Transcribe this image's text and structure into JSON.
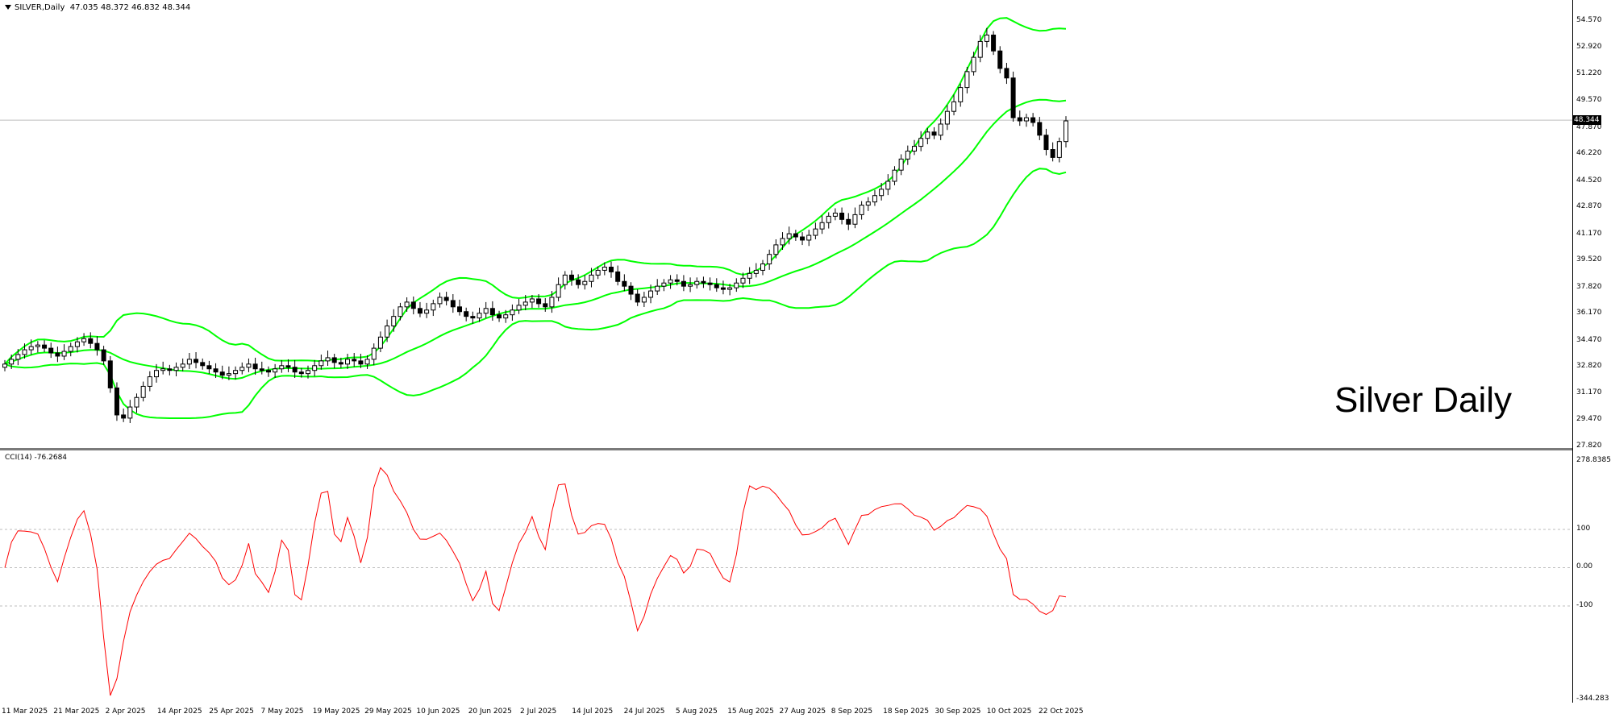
{
  "symbol_label": "SILVER,Daily",
  "ohlc_label": "47.035 48.372 46.832 48.344",
  "watermark": "Silver Daily",
  "cci_label": "CCI(14) -76.2684",
  "last_price": "48.344",
  "colors": {
    "bands": "#00ff00",
    "cci": "#ff0000",
    "candle": "#000000",
    "grid": "#c8c8c8"
  },
  "price_axis": [
    "54.570",
    "52.920",
    "51.220",
    "49.570",
    "47.870",
    "46.220",
    "44.520",
    "42.870",
    "41.170",
    "39.520",
    "37.820",
    "36.170",
    "34.470",
    "32.820",
    "31.170",
    "29.470",
    "27.820"
  ],
  "cci_axis": [
    "278.8385",
    "100",
    "0.00",
    "-100",
    "-344.283"
  ],
  "date_axis": [
    "11 Mar 2025",
    "21 Mar 2025",
    "2 Apr 2025",
    "14 Apr 2025",
    "25 Apr 2025",
    "7 May 2025",
    "19 May 2025",
    "29 May 2025",
    "10 Jun 2025",
    "20 Jun 2025",
    "2 Jul 2025",
    "14 Jul 2025",
    "24 Jul 2025",
    "5 Aug 2025",
    "15 Aug 2025",
    "27 Aug 2025",
    "8 Sep 2025",
    "18 Sep 2025",
    "30 Sep 2025",
    "10 Oct 2025",
    "22 Oct 2025"
  ],
  "chart_data": {
    "type": "candlestick",
    "period": "Daily",
    "indicators": [
      "Bollinger Bands",
      "CCI(14)"
    ],
    "price_range": [
      27.82,
      55.5
    ],
    "cci_range": [
      -344.283,
      278.8385
    ],
    "closes": [
      33.0,
      33.3,
      33.6,
      33.9,
      34.1,
      34.2,
      34.0,
      33.7,
      33.5,
      33.8,
      34.1,
      34.4,
      34.6,
      34.3,
      33.9,
      33.2,
      31.5,
      29.8,
      29.6,
      30.3,
      30.9,
      31.6,
      32.2,
      32.6,
      32.7,
      32.6,
      32.8,
      33.0,
      33.3,
      33.1,
      32.9,
      32.7,
      32.5,
      32.3,
      32.4,
      32.6,
      32.8,
      33.0,
      32.7,
      32.6,
      32.5,
      32.7,
      32.9,
      32.8,
      32.5,
      32.4,
      32.6,
      32.9,
      33.2,
      33.4,
      33.1,
      33.0,
      33.3,
      33.2,
      33.0,
      33.3,
      34.0,
      34.7,
      35.4,
      36.0,
      36.6,
      36.9,
      36.5,
      36.2,
      36.4,
      36.8,
      37.2,
      37.0,
      36.6,
      36.3,
      36.0,
      35.9,
      36.2,
      36.5,
      36.1,
      35.9,
      36.1,
      36.4,
      36.7,
      36.9,
      37.1,
      36.8,
      36.6,
      37.2,
      38.0,
      38.6,
      38.3,
      38.0,
      38.2,
      38.6,
      38.9,
      39.1,
      38.8,
      38.2,
      37.9,
      37.4,
      36.9,
      37.2,
      37.6,
      37.9,
      38.1,
      38.3,
      38.2,
      37.9,
      38.0,
      38.2,
      38.1,
      38.0,
      37.8,
      37.7,
      37.8,
      38.1,
      38.4,
      38.7,
      38.9,
      39.3,
      39.9,
      40.5,
      40.9,
      41.2,
      41.0,
      40.8,
      41.1,
      41.5,
      41.9,
      42.3,
      42.5,
      42.1,
      41.8,
      42.4,
      43.0,
      43.2,
      43.6,
      44.0,
      44.5,
      45.2,
      45.9,
      46.4,
      46.7,
      47.2,
      47.6,
      47.4,
      48.1,
      48.9,
      49.5,
      50.4,
      51.4,
      52.3,
      53.3,
      53.7,
      52.7,
      51.6,
      51.0,
      48.5,
      48.3,
      48.5,
      48.2,
      47.4,
      46.5,
      46.0,
      47.0,
      48.3
    ]
  }
}
